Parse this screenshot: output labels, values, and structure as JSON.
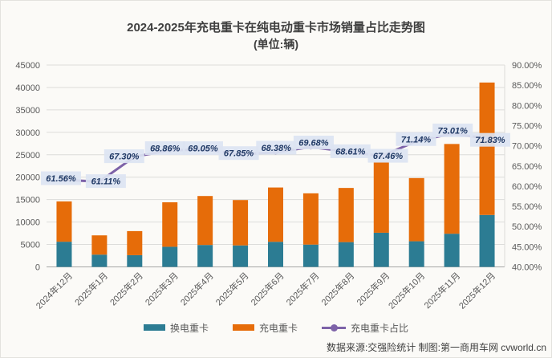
{
  "title": {
    "line1": "2024-2025年充电重卡在纯电动重卡市场销量占比走势图",
    "line2": "(单位:辆)"
  },
  "footer": {
    "text": "数据来源:交强险统计 制图:第一商用车网 cvworld.cn"
  },
  "legend": {
    "items": [
      {
        "label": "换电重卡",
        "marker": "bar",
        "color": "#2c7c93"
      },
      {
        "label": "充电重卡",
        "marker": "bar",
        "color": "#e66c09"
      },
      {
        "label": "充电重卡占比",
        "marker": "line-dot",
        "color": "#7d62a8"
      }
    ]
  },
  "chart_data": {
    "type": "bar",
    "subtype": "stacked-bars-with-line",
    "categories": [
      "2024年12月",
      "2025年1月",
      "2025年2月",
      "2025年3月",
      "2025年4月",
      "2025年5月",
      "2025年6月",
      "2025年7月",
      "2025年8月",
      "2025年9月",
      "2025年10月",
      "2025年11月",
      "2025年12月"
    ],
    "series": [
      {
        "name": "换电重卡",
        "type": "bar",
        "stack": "total",
        "color": "#2c7c93",
        "values": [
          5612,
          2734,
          2610,
          4484,
          4890,
          4790,
          5597,
          4972,
          5525,
          7615,
          5714,
          7396,
          11578
        ]
      },
      {
        "name": "充电重卡",
        "type": "bar",
        "stack": "total",
        "color": "#e66c09",
        "values": [
          8988,
          4296,
          5370,
          9916,
          10910,
          10110,
          12103,
          11428,
          12075,
          15785,
          14086,
          20004,
          29522
        ]
      },
      {
        "name": "充电重卡占比",
        "type": "line",
        "axis": "right",
        "color": "#7d62a8",
        "values": [
          61.56,
          61.11,
          67.3,
          68.86,
          69.05,
          67.85,
          68.38,
          69.68,
          68.61,
          67.46,
          71.14,
          73.01,
          71.83
        ],
        "labels": [
          "61.56%",
          "61.11%",
          "67.30%",
          "68.86%",
          "69.05%",
          "67.85%",
          "68.38%",
          "69.68%",
          "68.61%",
          "67.46%",
          "71.14%",
          "73.01%",
          "71.83%"
        ]
      }
    ],
    "left_axis": {
      "min": 0,
      "max": 45000,
      "step": 5000,
      "ticks": [
        "0",
        "5000",
        "10000",
        "15000",
        "20000",
        "25000",
        "30000",
        "35000",
        "40000",
        "45000"
      ]
    },
    "right_axis": {
      "min": 40,
      "max": 90,
      "step": 5,
      "ticks": [
        "40.00%",
        "45.00%",
        "50.00%",
        "55.00%",
        "60.00%",
        "65.00%",
        "70.00%",
        "75.00%",
        "80.00%",
        "85.00%",
        "90.00%"
      ]
    },
    "grid": true,
    "legend_position": "bottom",
    "label_style": {
      "bg": "#dce4f2",
      "text": "#1f3864"
    },
    "axis_text_color": "#595959",
    "grid_color": "#dcdcda",
    "axis_line_color": "#a6a6a6"
  }
}
